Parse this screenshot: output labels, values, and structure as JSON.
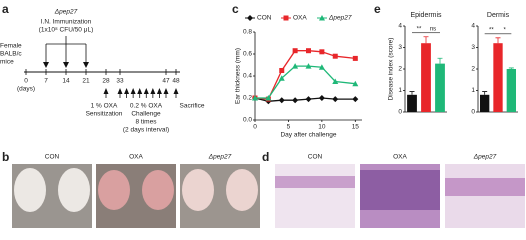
{
  "panel_labels": [
    "a",
    "b",
    "c",
    "d",
    "e"
  ],
  "timeline": {
    "strain": "Δpep27",
    "immunization": "I.N. Immunization",
    "dose": "(1x10⁸ CFU/50 μL)",
    "subject": [
      "Female",
      "BALB/c",
      "mice"
    ],
    "days": [
      0,
      7,
      14,
      21,
      28,
      33,
      47,
      48
    ],
    "days_unit": "(days)",
    "sensitization": [
      "1 % OXA",
      "Sensitization"
    ],
    "challenge": [
      "0.2 % OXA",
      "Challenge",
      "8 times",
      "(2 days interval)"
    ],
    "sacrifice": "Sacrifice"
  },
  "photos": {
    "groups": [
      "CON",
      "OXA",
      "Δpep27"
    ]
  },
  "histology": {
    "groups": [
      "CON",
      "OXA",
      "Δpep27"
    ]
  },
  "chart_data": [
    {
      "type": "line",
      "xlabel": "Day after  challenge",
      "ylabel": "Ear thickness (mm)",
      "x": [
        0,
        2,
        4,
        6,
        8,
        10,
        12,
        15
      ],
      "series": [
        {
          "name": "CON",
          "color": "#111111",
          "marker": "diamond",
          "values": [
            0.2,
            0.17,
            0.18,
            0.18,
            0.19,
            0.2,
            0.19,
            0.19
          ]
        },
        {
          "name": "OXA",
          "color": "#e8262a",
          "marker": "square",
          "values": [
            0.2,
            0.19,
            0.45,
            0.63,
            0.63,
            0.62,
            0.58,
            0.56
          ]
        },
        {
          "name": "Δpep27",
          "color": "#1fb878",
          "marker": "triangle",
          "values": [
            0.2,
            0.2,
            0.38,
            0.49,
            0.49,
            0.48,
            0.35,
            0.33
          ]
        }
      ],
      "xlim": [
        0,
        16
      ],
      "xticks": [
        0,
        5,
        10,
        15
      ],
      "ylim": [
        0,
        0.8
      ],
      "yticks": [
        {
          "value": 0,
          "label": "0.0"
        },
        0.2,
        0.4,
        0.6,
        0.8
      ]
    },
    {
      "type": "bar",
      "title": "Epidermis",
      "ylabel": "Disease index (score)",
      "categories": [
        null,
        null,
        null
      ],
      "values": [
        0.8,
        3.2,
        2.25
      ],
      "errors": [
        0.15,
        0.3,
        0.25
      ],
      "colors": [
        "#111111",
        "#e8262a",
        "#1fb878"
      ],
      "ylim": [
        0,
        4
      ],
      "yticks": [
        0,
        1,
        2,
        3,
        4
      ],
      "annotations": [
        "**",
        "ns"
      ]
    },
    {
      "type": "bar",
      "title": "Dermis",
      "categories": [
        null,
        null,
        null
      ],
      "values": [
        0.8,
        3.2,
        2.0
      ],
      "errors": [
        0.15,
        0.25,
        0.05
      ],
      "colors": [
        "#111111",
        "#e8262a",
        "#1fb878"
      ],
      "ylim": [
        0,
        4
      ],
      "yticks": [
        0,
        1,
        2,
        3,
        4
      ],
      "annotations": [
        "**",
        "*"
      ]
    }
  ]
}
